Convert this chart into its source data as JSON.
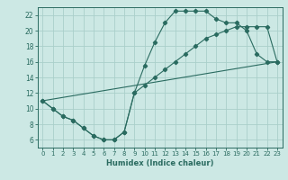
{
  "title": "",
  "xlabel": "Humidex (Indice chaleur)",
  "xlim": [
    -0.5,
    23.5
  ],
  "ylim": [
    5,
    23
  ],
  "xticks": [
    0,
    1,
    2,
    3,
    4,
    5,
    6,
    7,
    8,
    9,
    10,
    11,
    12,
    13,
    14,
    15,
    16,
    17,
    18,
    19,
    20,
    21,
    22,
    23
  ],
  "yticks": [
    6,
    8,
    10,
    12,
    14,
    16,
    18,
    20,
    22
  ],
  "bg_color": "#cce8e4",
  "grid_color": "#aacfca",
  "line_color": "#2a6b60",
  "line1_x": [
    0,
    1,
    2,
    3,
    4,
    5,
    6,
    7,
    8,
    9,
    10,
    11,
    12,
    13,
    14,
    15,
    16,
    17,
    18,
    19,
    20,
    21,
    22,
    23
  ],
  "line1_y": [
    11,
    10,
    9,
    8.5,
    7.5,
    6.5,
    6,
    6,
    7,
    12,
    15.5,
    18.5,
    21,
    22.5,
    22.5,
    22.5,
    22.5,
    21.5,
    21,
    21,
    20,
    17,
    16,
    16
  ],
  "line2_x": [
    0,
    1,
    2,
    3,
    4,
    5,
    6,
    7,
    8,
    9,
    10,
    11,
    12,
    13,
    14,
    15,
    16,
    17,
    18,
    19,
    20,
    21,
    22,
    23
  ],
  "line2_y": [
    11,
    10,
    9,
    8.5,
    7.5,
    6.5,
    6,
    6,
    7,
    12,
    13,
    14,
    15,
    16,
    17,
    18,
    19,
    19.5,
    20,
    20.5,
    20.5,
    20.5,
    20.5,
    16
  ],
  "line3_x": [
    0,
    23
  ],
  "line3_y": [
    11,
    16
  ]
}
